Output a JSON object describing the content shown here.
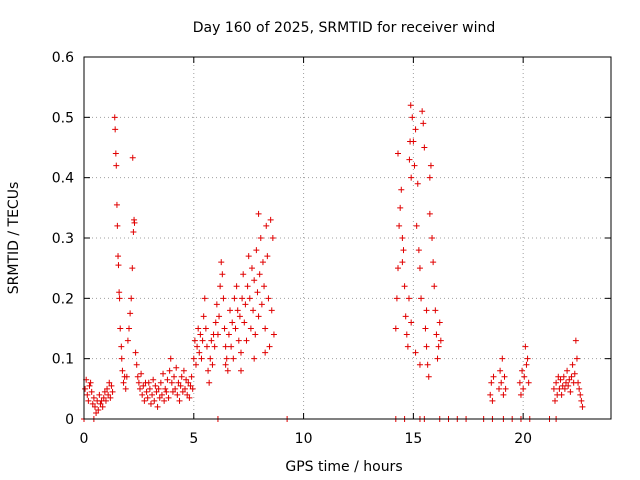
{
  "chart_data": {
    "type": "scatter",
    "title": "Day 160 of 2025, SRMTID for receiver wind",
    "xlabel": "GPS time / hours",
    "ylabel": "SRMTID / TECUs",
    "xlim": [
      0,
      24
    ],
    "ylim": [
      0,
      0.6
    ],
    "xticks": [
      0,
      5,
      10,
      15,
      20
    ],
    "xtick_labels": [
      "0",
      "5",
      "10",
      "15",
      "20"
    ],
    "yticks": [
      0,
      0.1,
      0.2,
      0.3,
      0.4,
      0.5,
      0.6
    ],
    "ytick_labels": [
      "0",
      "0.1",
      "0.2",
      "0.3",
      "0.4",
      "0.5",
      "0.6"
    ],
    "grid": true,
    "marker": "+",
    "color": "#e00000",
    "series": [
      {
        "name": "SRMTID",
        "points": [
          [
            0.05,
            0.05
          ],
          [
            0.1,
            0.065
          ],
          [
            0.15,
            0.04
          ],
          [
            0.2,
            0.03
          ],
          [
            0.25,
            0.055
          ],
          [
            0.3,
            0.06
          ],
          [
            0.35,
            0.045
          ],
          [
            0.4,
            0.025
          ],
          [
            0.45,
            0.035
          ],
          [
            0.5,
            0.02
          ],
          [
            0.55,
            0.01
          ],
          [
            0.6,
            0.03
          ],
          [
            0.65,
            0.015
          ],
          [
            0.7,
            0.04
          ],
          [
            0.75,
            0.025
          ],
          [
            0.8,
            0.03
          ],
          [
            0.85,
            0.02
          ],
          [
            0.9,
            0.035
          ],
          [
            0.95,
            0.045
          ],
          [
            1.0,
            0.03
          ],
          [
            1.05,
            0.05
          ],
          [
            1.1,
            0.04
          ],
          [
            1.15,
            0.06
          ],
          [
            1.2,
            0.035
          ],
          [
            1.25,
            0.055
          ],
          [
            1.3,
            0.045
          ],
          [
            1.4,
            0.5
          ],
          [
            1.42,
            0.48
          ],
          [
            1.45,
            0.44
          ],
          [
            1.47,
            0.42
          ],
          [
            1.5,
            0.355
          ],
          [
            1.52,
            0.32
          ],
          [
            1.55,
            0.27
          ],
          [
            1.57,
            0.255
          ],
          [
            1.6,
            0.21
          ],
          [
            1.62,
            0.2
          ],
          [
            1.65,
            0.15
          ],
          [
            1.7,
            0.12
          ],
          [
            1.72,
            0.1
          ],
          [
            1.75,
            0.08
          ],
          [
            1.8,
            0.06
          ],
          [
            1.85,
            0.07
          ],
          [
            1.9,
            0.05
          ],
          [
            1.95,
            0.07
          ],
          [
            2.0,
            0.13
          ],
          [
            2.05,
            0.15
          ],
          [
            2.1,
            0.175
          ],
          [
            2.15,
            0.2
          ],
          [
            2.2,
            0.25
          ],
          [
            2.25,
            0.31
          ],
          [
            2.28,
            0.33
          ],
          [
            2.3,
            0.325
          ],
          [
            2.22,
            0.433
          ],
          [
            2.35,
            0.11
          ],
          [
            2.4,
            0.09
          ],
          [
            2.45,
            0.07
          ],
          [
            2.5,
            0.06
          ],
          [
            2.55,
            0.05
          ],
          [
            2.6,
            0.075
          ],
          [
            2.65,
            0.04
          ],
          [
            2.7,
            0.055
          ],
          [
            2.75,
            0.03
          ],
          [
            2.8,
            0.06
          ],
          [
            2.85,
            0.045
          ],
          [
            2.9,
            0.035
          ],
          [
            2.95,
            0.06
          ],
          [
            3.0,
            0.05
          ],
          [
            3.05,
            0.025
          ],
          [
            3.1,
            0.04
          ],
          [
            3.15,
            0.065
          ],
          [
            3.2,
            0.03
          ],
          [
            3.25,
            0.055
          ],
          [
            3.3,
            0.045
          ],
          [
            3.35,
            0.02
          ],
          [
            3.4,
            0.05
          ],
          [
            3.45,
            0.035
          ],
          [
            3.5,
            0.06
          ],
          [
            3.55,
            0.04
          ],
          [
            3.6,
            0.075
          ],
          [
            3.65,
            0.03
          ],
          [
            3.7,
            0.05
          ],
          [
            3.75,
            0.045
          ],
          [
            3.8,
            0.065
          ],
          [
            3.85,
            0.035
          ],
          [
            3.9,
            0.08
          ],
          [
            3.95,
            0.1
          ],
          [
            4.0,
            0.06
          ],
          [
            4.05,
            0.045
          ],
          [
            4.1,
            0.07
          ],
          [
            4.15,
            0.05
          ],
          [
            4.2,
            0.085
          ],
          [
            4.25,
            0.04
          ],
          [
            4.3,
            0.06
          ],
          [
            4.35,
            0.03
          ],
          [
            4.4,
            0.055
          ],
          [
            4.45,
            0.07
          ],
          [
            4.5,
            0.045
          ],
          [
            4.55,
            0.08
          ],
          [
            4.6,
            0.05
          ],
          [
            4.65,
            0.065
          ],
          [
            4.7,
            0.04
          ],
          [
            4.75,
            0.06
          ],
          [
            4.8,
            0.035
          ],
          [
            4.85,
            0.055
          ],
          [
            4.9,
            0.07
          ],
          [
            4.95,
            0.05
          ],
          [
            5.0,
            0.1
          ],
          [
            5.05,
            0.13
          ],
          [
            5.1,
            0.09
          ],
          [
            5.15,
            0.12
          ],
          [
            5.2,
            0.15
          ],
          [
            5.25,
            0.11
          ],
          [
            5.3,
            0.14
          ],
          [
            5.35,
            0.1
          ],
          [
            5.4,
            0.13
          ],
          [
            5.45,
            0.17
          ],
          [
            5.5,
            0.2
          ],
          [
            5.55,
            0.15
          ],
          [
            5.6,
            0.12
          ],
          [
            5.65,
            0.08
          ],
          [
            5.7,
            0.06
          ],
          [
            5.75,
            0.1
          ],
          [
            5.8,
            0.13
          ],
          [
            5.85,
            0.09
          ],
          [
            5.9,
            0.14
          ],
          [
            5.95,
            0.12
          ],
          [
            6.0,
            0.16
          ],
          [
            6.05,
            0.19
          ],
          [
            6.1,
            0.14
          ],
          [
            6.15,
            0.17
          ],
          [
            6.2,
            0.22
          ],
          [
            6.25,
            0.26
          ],
          [
            6.3,
            0.24
          ],
          [
            6.35,
            0.2
          ],
          [
            6.4,
            0.15
          ],
          [
            6.45,
            0.12
          ],
          [
            6.5,
            0.1
          ],
          [
            6.55,
            0.08
          ],
          [
            6.6,
            0.14
          ],
          [
            6.65,
            0.18
          ],
          [
            6.7,
            0.12
          ],
          [
            6.75,
            0.16
          ],
          [
            6.8,
            0.1
          ],
          [
            6.85,
            0.2
          ],
          [
            6.9,
            0.15
          ],
          [
            6.95,
            0.22
          ],
          [
            7.0,
            0.18
          ],
          [
            7.05,
            0.13
          ],
          [
            7.1,
            0.17
          ],
          [
            7.15,
            0.11
          ],
          [
            7.2,
            0.2
          ],
          [
            7.25,
            0.24
          ],
          [
            7.3,
            0.16
          ],
          [
            7.35,
            0.19
          ],
          [
            7.4,
            0.13
          ],
          [
            7.45,
            0.22
          ],
          [
            7.5,
            0.27
          ],
          [
            7.55,
            0.2
          ],
          [
            7.6,
            0.15
          ],
          [
            7.65,
            0.25
          ],
          [
            7.7,
            0.18
          ],
          [
            7.75,
            0.23
          ],
          [
            7.8,
            0.14
          ],
          [
            7.85,
            0.28
          ],
          [
            7.9,
            0.21
          ],
          [
            7.95,
            0.17
          ],
          [
            8.0,
            0.24
          ],
          [
            8.05,
            0.3
          ],
          [
            8.1,
            0.19
          ],
          [
            8.15,
            0.26
          ],
          [
            8.2,
            0.22
          ],
          [
            8.25,
            0.15
          ],
          [
            8.3,
            0.32
          ],
          [
            8.35,
            0.27
          ],
          [
            8.4,
            0.2
          ],
          [
            8.45,
            0.12
          ],
          [
            8.5,
            0.33
          ],
          [
            8.55,
            0.18
          ],
          [
            8.6,
            0.3
          ],
          [
            8.65,
            0.14
          ],
          [
            7.95,
            0.34
          ],
          [
            6.45,
            0.09
          ],
          [
            7.15,
            0.08
          ],
          [
            7.75,
            0.1
          ],
          [
            8.25,
            0.11
          ],
          [
            0.0,
            0
          ],
          [
            0.45,
            0
          ],
          [
            6.1,
            0
          ],
          [
            9.25,
            0
          ],
          [
            14.2,
            0.15
          ],
          [
            14.25,
            0.2
          ],
          [
            14.3,
            0.25
          ],
          [
            14.35,
            0.32
          ],
          [
            14.4,
            0.35
          ],
          [
            14.45,
            0.38
          ],
          [
            14.5,
            0.3
          ],
          [
            14.55,
            0.28
          ],
          [
            14.6,
            0.22
          ],
          [
            14.65,
            0.17
          ],
          [
            14.7,
            0.14
          ],
          [
            14.75,
            0.12
          ],
          [
            14.8,
            0.2
          ],
          [
            14.82,
            0.43
          ],
          [
            14.85,
            0.46
          ],
          [
            14.88,
            0.52
          ],
          [
            14.9,
            0.4
          ],
          [
            14.95,
            0.5
          ],
          [
            15.0,
            0.46
          ],
          [
            15.05,
            0.42
          ],
          [
            15.1,
            0.48
          ],
          [
            15.15,
            0.32
          ],
          [
            15.2,
            0.39
          ],
          [
            15.25,
            0.28
          ],
          [
            15.3,
            0.25
          ],
          [
            15.35,
            0.2
          ],
          [
            15.4,
            0.51
          ],
          [
            15.45,
            0.49
          ],
          [
            15.5,
            0.45
          ],
          [
            15.55,
            0.15
          ],
          [
            15.6,
            0.12
          ],
          [
            15.65,
            0.09
          ],
          [
            15.7,
            0.07
          ],
          [
            15.75,
            0.34
          ],
          [
            15.8,
            0.42
          ],
          [
            15.85,
            0.3
          ],
          [
            15.9,
            0.26
          ],
          [
            15.95,
            0.22
          ],
          [
            16.0,
            0.18
          ],
          [
            16.05,
            0.14
          ],
          [
            16.1,
            0.1
          ],
          [
            16.15,
            0.12
          ],
          [
            16.2,
            0.16
          ],
          [
            16.25,
            0.13
          ],
          [
            14.3,
            0.44
          ],
          [
            14.5,
            0.26
          ],
          [
            14.9,
            0.16
          ],
          [
            15.1,
            0.11
          ],
          [
            15.3,
            0.09
          ],
          [
            15.6,
            0.18
          ],
          [
            15.75,
            0.4
          ],
          [
            14.2,
            0
          ],
          [
            14.6,
            0
          ],
          [
            15.3,
            0
          ],
          [
            15.5,
            0
          ],
          [
            16.2,
            0
          ],
          [
            16.6,
            0
          ],
          [
            17.0,
            0
          ],
          [
            17.4,
            0
          ],
          [
            18.2,
            0
          ],
          [
            18.6,
            0
          ],
          [
            19.1,
            0
          ],
          [
            19.5,
            0
          ],
          [
            19.9,
            0
          ],
          [
            20.3,
            0
          ],
          [
            21.2,
            0
          ],
          [
            21.5,
            0
          ],
          [
            18.5,
            0.04
          ],
          [
            18.55,
            0.06
          ],
          [
            18.6,
            0.03
          ],
          [
            18.65,
            0.07
          ],
          [
            18.9,
            0.05
          ],
          [
            18.95,
            0.08
          ],
          [
            19.0,
            0.06
          ],
          [
            19.05,
            0.1
          ],
          [
            19.1,
            0.04
          ],
          [
            19.15,
            0.07
          ],
          [
            19.2,
            0.05
          ],
          [
            19.85,
            0.06
          ],
          [
            19.9,
            0.04
          ],
          [
            19.95,
            0.08
          ],
          [
            20.0,
            0.05
          ],
          [
            20.05,
            0.07
          ],
          [
            20.1,
            0.12
          ],
          [
            20.15,
            0.09
          ],
          [
            20.2,
            0.1
          ],
          [
            20.25,
            0.06
          ],
          [
            21.4,
            0.05
          ],
          [
            21.45,
            0.03
          ],
          [
            21.5,
            0.06
          ],
          [
            21.55,
            0.04
          ],
          [
            21.6,
            0.07
          ],
          [
            21.65,
            0.05
          ],
          [
            21.7,
            0.065
          ],
          [
            21.75,
            0.04
          ],
          [
            21.8,
            0.055
          ],
          [
            21.85,
            0.07
          ],
          [
            21.9,
            0.05
          ],
          [
            21.95,
            0.06
          ],
          [
            22.0,
            0.08
          ],
          [
            22.05,
            0.055
          ],
          [
            22.1,
            0.065
          ],
          [
            22.15,
            0.045
          ],
          [
            22.2,
            0.07
          ],
          [
            22.25,
            0.09
          ],
          [
            22.3,
            0.06
          ],
          [
            22.35,
            0.075
          ],
          [
            22.4,
            0.13
          ],
          [
            22.45,
            0.1
          ],
          [
            22.5,
            0.06
          ],
          [
            22.55,
            0.05
          ],
          [
            22.6,
            0.04
          ],
          [
            22.65,
            0.03
          ],
          [
            22.7,
            0.02
          ]
        ]
      }
    ]
  }
}
